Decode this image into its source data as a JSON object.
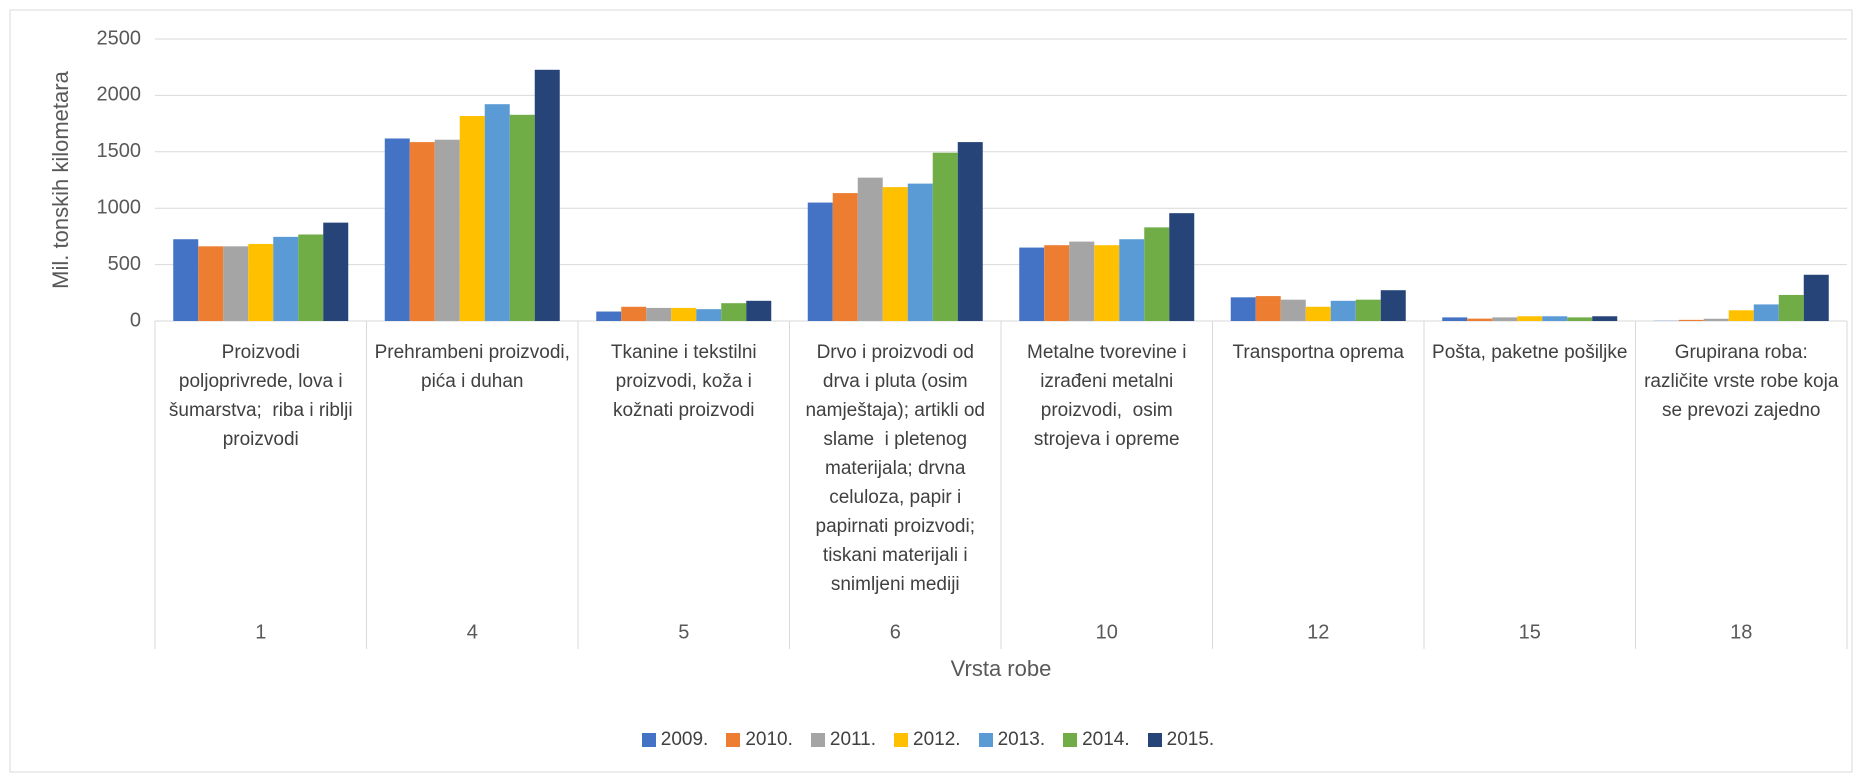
{
  "chart_data": {
    "type": "bar",
    "y_label": "Mil. tonskih kilometara",
    "x_label": "Vrsta robe",
    "categories": [
      "1",
      "4",
      "5",
      "6",
      "10",
      "12",
      "15",
      "18"
    ],
    "category_descriptions": [
      "Proizvodi poljoprivrede, lova i šumarstva;  riba i riblji proizvodi",
      "Prehrambeni proizvodi, pića i duhan",
      "Tkanine i tekstilni proizvodi, koža i kožnati proizvodi",
      "Drvo i proizvodi od drva i pluta (osim namještaja); artikli od slame  i pletenog materijala; drvna celuloza, papir i papirnati proizvodi; tiskani materijali i snimljeni mediji",
      "Metalne tvorevine i izrađeni metalni proizvodi,  osim strojeva i opreme",
      "Transportna oprema",
      "Pošta, paketne pošiljke",
      "Grupirana roba: različite vrste robe koja se prevozi zajedno"
    ],
    "series": [
      {
        "name": "2009.",
        "color": "#4472c4",
        "values": [
          725,
          1618,
          84,
          1050,
          651,
          210,
          32,
          2
        ]
      },
      {
        "name": "2010.",
        "color": "#ed7d31",
        "values": [
          662,
          1586,
          126,
          1134,
          672,
          221,
          21,
          10
        ]
      },
      {
        "name": "2011.",
        "color": "#a5a5a5",
        "values": [
          662,
          1607,
          116,
          1271,
          704,
          189,
          32,
          20
        ]
      },
      {
        "name": "2012.",
        "color": "#ffc000",
        "values": [
          683,
          1817,
          116,
          1187,
          672,
          126,
          42,
          95
        ]
      },
      {
        "name": "2013.",
        "color": "#5b9bd5",
        "values": [
          746,
          1922,
          105,
          1218,
          725,
          179,
          42,
          147
        ]
      },
      {
        "name": "2014.",
        "color": "#70ad47",
        "values": [
          767,
          1828,
          158,
          1492,
          830,
          189,
          32,
          231
        ]
      },
      {
        "name": "2015.",
        "color": "#264478",
        "values": [
          872,
          2227,
          179,
          1586,
          956,
          273,
          42,
          410
        ]
      }
    ],
    "ylim": [
      0,
      2500
    ],
    "yticks": [
      0,
      500,
      1000,
      1500,
      2000,
      2500
    ],
    "grid": true,
    "legend": "bottom"
  }
}
